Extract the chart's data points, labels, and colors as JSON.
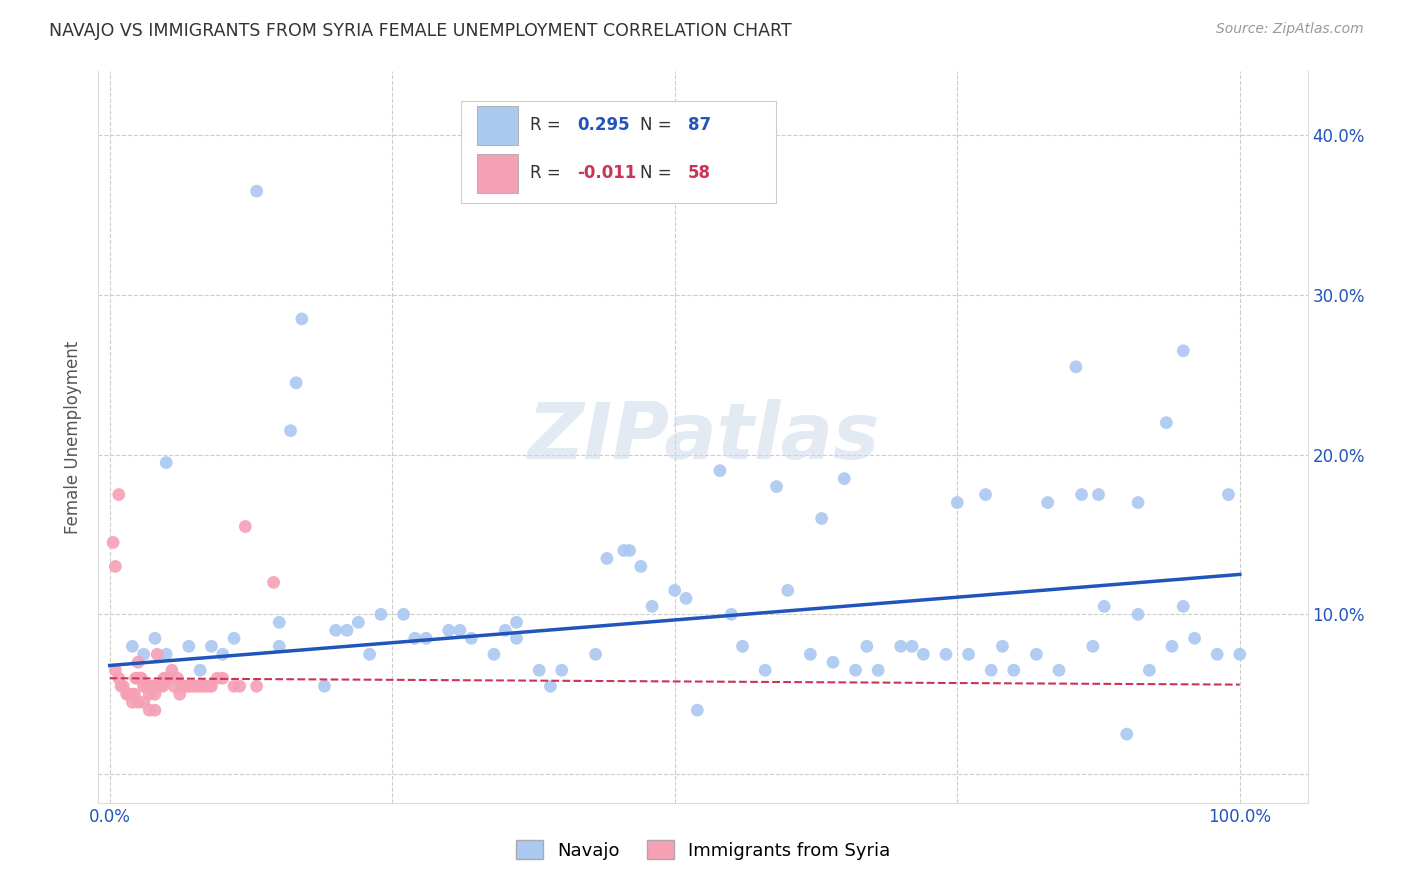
{
  "title": "NAVAJO VS IMMIGRANTS FROM SYRIA FEMALE UNEMPLOYMENT CORRELATION CHART",
  "source": "Source: ZipAtlas.com",
  "ylabel": "Female Unemployment",
  "ytick_values": [
    0.0,
    0.1,
    0.2,
    0.3,
    0.4
  ],
  "ytick_labels_right": [
    "",
    "10.0%",
    "20.0%",
    "30.0%",
    "40.0%"
  ],
  "xtick_values": [
    0.0,
    0.25,
    0.5,
    0.75,
    1.0
  ],
  "xtick_labels": [
    "0.0%",
    "",
    "",
    "",
    "100.0%"
  ],
  "xlim": [
    -0.01,
    1.06
  ],
  "ylim": [
    -0.018,
    0.44
  ],
  "legend_entries": [
    {
      "label": "Navajo",
      "R": 0.295,
      "N": 87,
      "color": "#aac8f0",
      "line_color": "#2255bb"
    },
    {
      "label": "Immigrants from Syria",
      "R": -0.011,
      "N": 58,
      "color": "#f5a0b5",
      "line_color": "#cc3355"
    }
  ],
  "watermark": "ZIPatlas",
  "nav_line_x": [
    0.0,
    1.0
  ],
  "nav_line_y": [
    0.068,
    0.125
  ],
  "syr_line_x": [
    0.0,
    1.0
  ],
  "syr_line_y": [
    0.06,
    0.056
  ],
  "navajo_points": [
    [
      0.13,
      0.365
    ],
    [
      0.17,
      0.285
    ],
    [
      0.165,
      0.245
    ],
    [
      0.05,
      0.195
    ],
    [
      0.54,
      0.19
    ],
    [
      0.855,
      0.255
    ],
    [
      0.95,
      0.265
    ],
    [
      0.935,
      0.22
    ],
    [
      0.99,
      0.175
    ],
    [
      0.91,
      0.17
    ],
    [
      0.86,
      0.175
    ],
    [
      0.875,
      0.175
    ],
    [
      0.775,
      0.175
    ],
    [
      0.16,
      0.215
    ],
    [
      0.65,
      0.185
    ],
    [
      0.02,
      0.08
    ],
    [
      0.04,
      0.085
    ],
    [
      0.08,
      0.065
    ],
    [
      0.1,
      0.075
    ],
    [
      0.15,
      0.095
    ],
    [
      0.2,
      0.09
    ],
    [
      0.22,
      0.095
    ],
    [
      0.24,
      0.1
    ],
    [
      0.26,
      0.1
    ],
    [
      0.28,
      0.085
    ],
    [
      0.3,
      0.09
    ],
    [
      0.32,
      0.085
    ],
    [
      0.34,
      0.075
    ],
    [
      0.36,
      0.085
    ],
    [
      0.38,
      0.065
    ],
    [
      0.4,
      0.065
    ],
    [
      0.44,
      0.135
    ],
    [
      0.46,
      0.14
    ],
    [
      0.48,
      0.105
    ],
    [
      0.5,
      0.115
    ],
    [
      0.36,
      0.095
    ],
    [
      0.52,
      0.04
    ],
    [
      0.56,
      0.08
    ],
    [
      0.58,
      0.065
    ],
    [
      0.6,
      0.115
    ],
    [
      0.62,
      0.075
    ],
    [
      0.64,
      0.07
    ],
    [
      0.66,
      0.065
    ],
    [
      0.68,
      0.065
    ],
    [
      0.7,
      0.08
    ],
    [
      0.72,
      0.075
    ],
    [
      0.74,
      0.075
    ],
    [
      0.76,
      0.075
    ],
    [
      0.78,
      0.065
    ],
    [
      0.8,
      0.065
    ],
    [
      0.82,
      0.075
    ],
    [
      0.84,
      0.065
    ],
    [
      0.88,
      0.105
    ],
    [
      0.9,
      0.025
    ],
    [
      0.92,
      0.065
    ],
    [
      0.94,
      0.08
    ],
    [
      0.96,
      0.085
    ],
    [
      0.98,
      0.075
    ],
    [
      1.0,
      0.075
    ],
    [
      0.03,
      0.075
    ],
    [
      0.07,
      0.08
    ],
    [
      0.09,
      0.08
    ],
    [
      0.11,
      0.085
    ],
    [
      0.15,
      0.08
    ],
    [
      0.19,
      0.055
    ],
    [
      0.23,
      0.075
    ],
    [
      0.27,
      0.085
    ],
    [
      0.31,
      0.09
    ],
    [
      0.35,
      0.09
    ],
    [
      0.39,
      0.055
    ],
    [
      0.43,
      0.075
    ],
    [
      0.47,
      0.13
    ],
    [
      0.51,
      0.11
    ],
    [
      0.55,
      0.1
    ],
    [
      0.59,
      0.18
    ],
    [
      0.63,
      0.16
    ],
    [
      0.67,
      0.08
    ],
    [
      0.71,
      0.08
    ],
    [
      0.75,
      0.17
    ],
    [
      0.79,
      0.08
    ],
    [
      0.83,
      0.17
    ],
    [
      0.87,
      0.08
    ],
    [
      0.91,
      0.1
    ],
    [
      0.95,
      0.105
    ],
    [
      0.05,
      0.075
    ],
    [
      0.21,
      0.09
    ],
    [
      0.455,
      0.14
    ]
  ],
  "syria_points": [
    [
      0.008,
      0.175
    ],
    [
      0.003,
      0.145
    ],
    [
      0.005,
      0.13
    ],
    [
      0.005,
      0.065
    ],
    [
      0.008,
      0.06
    ],
    [
      0.01,
      0.055
    ],
    [
      0.012,
      0.055
    ],
    [
      0.015,
      0.05
    ],
    [
      0.017,
      0.05
    ],
    [
      0.018,
      0.05
    ],
    [
      0.02,
      0.05
    ],
    [
      0.022,
      0.05
    ],
    [
      0.023,
      0.06
    ],
    [
      0.025,
      0.06
    ],
    [
      0.025,
      0.07
    ],
    [
      0.027,
      0.06
    ],
    [
      0.028,
      0.06
    ],
    [
      0.03,
      0.055
    ],
    [
      0.032,
      0.055
    ],
    [
      0.033,
      0.055
    ],
    [
      0.035,
      0.05
    ],
    [
      0.037,
      0.055
    ],
    [
      0.038,
      0.055
    ],
    [
      0.04,
      0.05
    ],
    [
      0.042,
      0.075
    ],
    [
      0.042,
      0.055
    ],
    [
      0.045,
      0.055
    ],
    [
      0.047,
      0.055
    ],
    [
      0.048,
      0.06
    ],
    [
      0.05,
      0.06
    ],
    [
      0.052,
      0.06
    ],
    [
      0.055,
      0.065
    ],
    [
      0.057,
      0.055
    ],
    [
      0.06,
      0.06
    ],
    [
      0.062,
      0.05
    ],
    [
      0.065,
      0.055
    ],
    [
      0.068,
      0.055
    ],
    [
      0.07,
      0.055
    ],
    [
      0.072,
      0.055
    ],
    [
      0.075,
      0.055
    ],
    [
      0.078,
      0.055
    ],
    [
      0.08,
      0.055
    ],
    [
      0.082,
      0.055
    ],
    [
      0.085,
      0.055
    ],
    [
      0.088,
      0.055
    ],
    [
      0.09,
      0.055
    ],
    [
      0.095,
      0.06
    ],
    [
      0.1,
      0.06
    ],
    [
      0.11,
      0.055
    ],
    [
      0.115,
      0.055
    ],
    [
      0.12,
      0.155
    ],
    [
      0.13,
      0.055
    ],
    [
      0.145,
      0.12
    ],
    [
      0.02,
      0.045
    ],
    [
      0.025,
      0.045
    ],
    [
      0.03,
      0.045
    ],
    [
      0.035,
      0.04
    ],
    [
      0.04,
      0.04
    ]
  ]
}
